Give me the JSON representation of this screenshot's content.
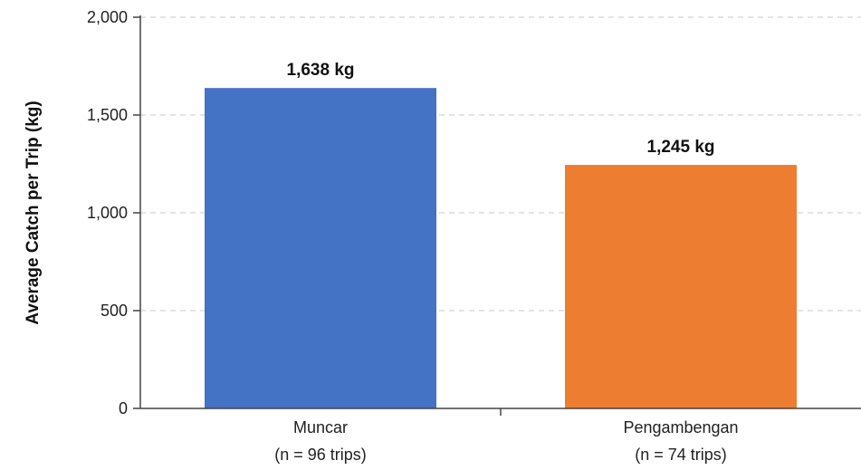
{
  "chart_data": {
    "type": "bar",
    "categories": [
      "Muncar",
      "Pengambengan"
    ],
    "category_sublabels": [
      "(n = 96 trips)",
      "(n = 74 trips)"
    ],
    "values": [
      1638,
      1245
    ],
    "data_labels": [
      "1,638 kg",
      "1,245 kg"
    ],
    "bar_colors": [
      "#4472C4",
      "#ED7D31"
    ],
    "title": "",
    "xlabel": "",
    "ylabel": "Average Catch per Trip (kg)",
    "ylim": [
      0,
      2000
    ],
    "yticks": [
      0,
      500,
      1000,
      1500,
      2000
    ],
    "ytick_labels": [
      "0",
      "500",
      "1,000",
      "1,500",
      "2,000"
    ],
    "grid": "horizontal dashed",
    "legend": "none"
  }
}
